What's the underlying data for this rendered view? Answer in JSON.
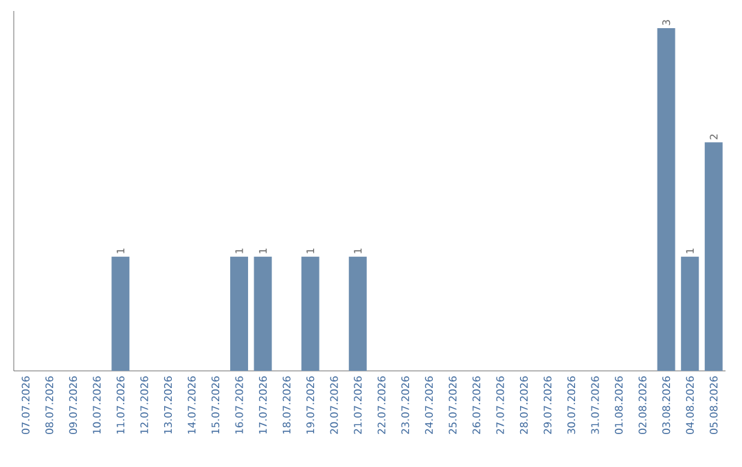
{
  "chart_data": {
    "type": "bar",
    "categories": [
      "07.07.2026",
      "08.07.2026",
      "09.07.2026",
      "10.07.2026",
      "11.07.2026",
      "12.07.2026",
      "13.07.2026",
      "14.07.2026",
      "15.07.2026",
      "16.07.2026",
      "17.07.2026",
      "18.07.2026",
      "19.07.2026",
      "20.07.2026",
      "21.07.2026",
      "22.07.2026",
      "23.07.2026",
      "24.07.2026",
      "25.07.2026",
      "26.07.2026",
      "27.07.2026",
      "28.07.2026",
      "29.07.2026",
      "30.07.2026",
      "31.07.2026",
      "01.08.2026",
      "02.08.2026",
      "03.08.2026",
      "04.08.2026",
      "05.08.2026"
    ],
    "values": [
      0,
      0,
      0,
      0,
      1,
      0,
      0,
      0,
      0,
      1,
      1,
      0,
      1,
      0,
      1,
      0,
      0,
      0,
      0,
      0,
      0,
      0,
      0,
      0,
      0,
      0,
      0,
      3,
      1,
      2
    ],
    "value_labels": [
      null,
      null,
      null,
      null,
      "1",
      null,
      null,
      null,
      null,
      "1",
      "1",
      null,
      "1",
      null,
      "1",
      null,
      null,
      null,
      null,
      null,
      null,
      null,
      null,
      null,
      null,
      null,
      null,
      "3",
      "1",
      "2"
    ],
    "color": "#6b8cae"
  }
}
